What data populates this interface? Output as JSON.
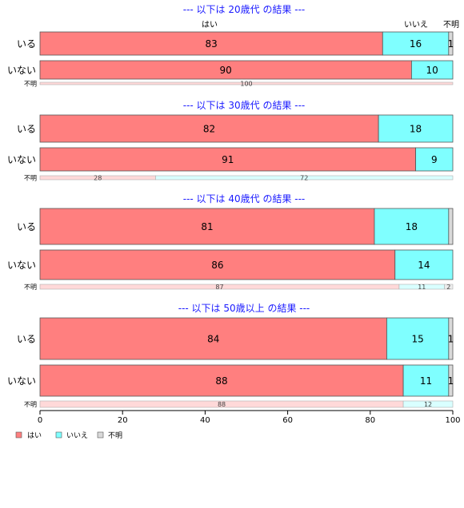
{
  "chart_data": {
    "type": "bar",
    "orientation": "horizontal",
    "stacked": true,
    "categories": [
      "はい",
      "いいえ",
      "不明"
    ],
    "colors": {
      "はい": "#ff7f7f",
      "いいえ": "#7fffff",
      "不明": "#d9d9d9",
      "はい_light": "#ffd9d9",
      "いいえ_light": "#d9ffff",
      "不明_light": "#ececec",
      "title": "#1a1aff"
    },
    "column_headers": [
      "はい",
      "いいえ",
      "不明"
    ],
    "xlim": [
      0,
      100
    ],
    "xticks": [
      "0",
      "20",
      "40",
      "60",
      "80",
      "100"
    ],
    "legend": [
      "はい",
      "いいえ",
      "不明"
    ],
    "panels": [
      {
        "title": "--- 以下は 20歳代 の結果 ---",
        "rows": [
          {
            "label": "いる",
            "values": [
              83,
              16,
              1
            ],
            "labels": [
              "83",
              "16",
              "1"
            ]
          },
          {
            "label": "いない",
            "values": [
              90,
              10,
              0
            ],
            "labels": [
              "90",
              "10",
              ""
            ]
          },
          {
            "label": "不明",
            "values": [
              100,
              0,
              0
            ],
            "labels": [
              "100",
              "",
              ""
            ]
          }
        ]
      },
      {
        "title": "--- 以下は 30歳代 の結果 ---",
        "rows": [
          {
            "label": "いる",
            "values": [
              82,
              18,
              0
            ],
            "labels": [
              "82",
              "18",
              ""
            ]
          },
          {
            "label": "いない",
            "values": [
              91,
              9,
              0
            ],
            "labels": [
              "91",
              "9",
              ""
            ]
          },
          {
            "label": "不明",
            "values": [
              28,
              72,
              0
            ],
            "labels": [
              "28",
              "72",
              ""
            ]
          }
        ]
      },
      {
        "title": "--- 以下は 40歳代 の結果 ---",
        "rows": [
          {
            "label": "いる",
            "values": [
              81,
              18,
              1
            ],
            "labels": [
              "81",
              "18",
              ""
            ]
          },
          {
            "label": "いない",
            "values": [
              86,
              14,
              0
            ],
            "labels": [
              "86",
              "14",
              ""
            ]
          },
          {
            "label": "不明",
            "values": [
              87,
              11,
              2
            ],
            "labels": [
              "87",
              "11",
              "2"
            ]
          }
        ]
      },
      {
        "title": "--- 以下は 50歳以上 の結果 ---",
        "rows": [
          {
            "label": "いる",
            "values": [
              84,
              15,
              1
            ],
            "labels": [
              "84",
              "15",
              "1"
            ]
          },
          {
            "label": "いない",
            "values": [
              88,
              11,
              1
            ],
            "labels": [
              "88",
              "11",
              "1"
            ]
          },
          {
            "label": "不明",
            "values": [
              88,
              12,
              0
            ],
            "labels": [
              "88",
              "12",
              ""
            ]
          }
        ]
      }
    ]
  }
}
